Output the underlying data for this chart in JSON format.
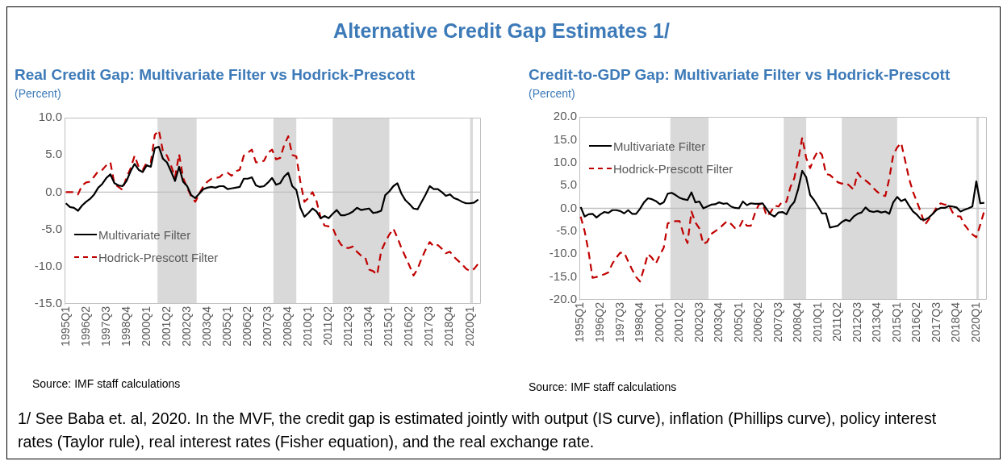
{
  "chart_data": [
    {
      "type": "line",
      "title": "Real Credit Gap: Multivariate Filter vs Hodrick-Prescott",
      "ylabel": "(Percent)",
      "annotations": [
        "Alternative Credit Gap Estimates 1/",
        "Source: IMF staff calculations",
        "1/ See Baba et. al, 2020. In the MVF,  the credit gap is estimated jointly with output (IS curve),  inflation (Phillips curve),  policy interest rates (Taylor rule), real interest rates (Fisher equation), and the real exchange rate."
      ],
      "x": [
        "1995-01",
        "1995-04",
        "1995-07",
        "1995-10",
        "1996-01",
        "1996-04",
        "1996-07",
        "1996-10",
        "1997-01",
        "1997-04",
        "1997-07",
        "1997-10",
        "1998-01",
        "1998-04",
        "1998-07",
        "1998-10",
        "1999-01",
        "1999-04",
        "1999-07",
        "1999-10",
        "2000-01",
        "2000-04",
        "2000-07",
        "2000-10",
        "2001-01",
        "2001-04",
        "2001-07",
        "2001-10",
        "2002-01",
        "2002-04",
        "2002-07",
        "2002-10",
        "2003-01",
        "2003-04",
        "2003-07",
        "2003-10",
        "2004-01",
        "2004-04",
        "2004-07",
        "2004-10",
        "2005-01",
        "2005-04",
        "2005-07",
        "2005-10",
        "2006-01",
        "2006-04",
        "2006-07",
        "2006-10",
        "2007-01",
        "2007-04",
        "2007-07",
        "2007-10",
        "2008-01",
        "2008-04",
        "2008-07",
        "2008-10",
        "2009-01",
        "2009-04",
        "2009-07",
        "2009-10",
        "2010-01",
        "2010-04",
        "2010-07",
        "2010-10",
        "2011-01",
        "2011-04",
        "2011-07",
        "2011-10",
        "2012-01",
        "2012-04",
        "2012-07",
        "2012-10",
        "2013-01",
        "2013-04",
        "2013-07",
        "2013-10",
        "2014-01",
        "2014-04",
        "2014-07",
        "2014-10",
        "2015-01",
        "2015-04",
        "2015-07",
        "2015-10",
        "2016-01",
        "2016-04",
        "2016-07",
        "2016-10",
        "2017-01",
        "2017-04",
        "2017-07",
        "2017-10",
        "2018-01",
        "2018-04",
        "2018-07",
        "2018-10",
        "2019-01",
        "2019-04",
        "2019-07",
        "2019-10",
        "2020-01",
        "2020-04",
        "2020-07"
      ],
      "series": [
        {
          "name": "Multivariate Filter",
          "color": "#000000",
          "line_style": "solid",
          "values": [
            -1.5,
            -2.0,
            -2.1,
            -2.5,
            -1.8,
            -1.3,
            -0.9,
            -0.3,
            0.6,
            1.1,
            1.9,
            2.4,
            1.2,
            0.9,
            0.8,
            1.5,
            2.8,
            3.8,
            3.0,
            2.7,
            3.6,
            3.4,
            5.9,
            6.1,
            4.5,
            4.0,
            2.8,
            1.5,
            3.4,
            1.4,
            0.8,
            -0.4,
            -0.8,
            -0.2,
            0.4,
            0.6,
            0.7,
            0.6,
            0.8,
            0.8,
            0.4,
            0.5,
            0.6,
            0.7,
            1.8,
            1.8,
            2.0,
            0.9,
            0.7,
            0.8,
            1.3,
            1.9,
            1.0,
            1.2,
            2.1,
            2.6,
            0.8,
            0.3,
            -2.1,
            -3.3,
            -2.8,
            -2.2,
            -2.6,
            -3.5,
            -3.2,
            -3.5,
            -2.9,
            -2.4,
            -3.1,
            -3.1,
            -2.9,
            -2.6,
            -2.1,
            -2.4,
            -2.3,
            -2.2,
            -2.8,
            -2.7,
            -2.5,
            -0.4,
            0.1,
            0.8,
            1.2,
            -0.2,
            -1.1,
            -1.6,
            -2.2,
            -2.3,
            -1.3,
            -0.3,
            0.8,
            0.4,
            0.4,
            0.0,
            -0.5,
            -0.3,
            -0.8,
            -1.0,
            -1.3,
            -1.5,
            -1.5,
            -1.4,
            -1.0
          ]
        },
        {
          "name": "Hodrick-Prescott Filter",
          "color": "#c00000",
          "line_style": "dashed",
          "values": [
            0.0,
            0.0,
            0.0,
            -0.3,
            0.9,
            1.3,
            1.4,
            2.1,
            2.8,
            3.0,
            3.6,
            4.0,
            1.1,
            0.7,
            0.3,
            2.0,
            3.2,
            4.9,
            3.4,
            3.0,
            4.0,
            4.0,
            7.7,
            8.3,
            5.5,
            4.9,
            3.6,
            2.0,
            5.1,
            1.9,
            0.6,
            -0.6,
            -1.3,
            -0.2,
            0.8,
            1.4,
            1.8,
            1.9,
            2.0,
            2.5,
            2.6,
            2.2,
            2.8,
            3.0,
            4.9,
            5.3,
            5.7,
            4.0,
            4.0,
            4.2,
            5.3,
            5.7,
            4.4,
            4.6,
            6.3,
            7.5,
            5.0,
            4.8,
            1.4,
            -1.3,
            -0.8,
            0.0,
            -1.2,
            -3.4,
            -4.5,
            -4.6,
            -4.8,
            -6.1,
            -7.0,
            -7.5,
            -7.5,
            -7.3,
            -8.0,
            -8.5,
            -8.7,
            -10.4,
            -10.6,
            -11.1,
            -7.9,
            -6.7,
            -5.7,
            -4.9,
            -6.1,
            -7.5,
            -8.7,
            -9.9,
            -11.2,
            -10.3,
            -8.9,
            -7.7,
            -6.7,
            -7.3,
            -7.1,
            -7.6,
            -8.2,
            -8.0,
            -8.7,
            -9.2,
            -9.7,
            -10.3,
            -10.6,
            -10.3,
            -9.6
          ]
        }
      ],
      "xlim": [
        "1994-12",
        "2020-09"
      ],
      "xticks": [
        {
          "value": "1995-01",
          "label": "1995Q1"
        },
        {
          "value": "1996-04",
          "label": "1996Q2"
        },
        {
          "value": "1997-07",
          "label": "1997Q3"
        },
        {
          "value": "1998-10",
          "label": "1998Q4"
        },
        {
          "value": "2000-01",
          "label": "2000Q1"
        },
        {
          "value": "2001-04",
          "label": "2001Q2"
        },
        {
          "value": "2002-07",
          "label": "2002Q3"
        },
        {
          "value": "2003-10",
          "label": "2003Q4"
        },
        {
          "value": "2005-01",
          "label": "2005Q1"
        },
        {
          "value": "2006-04",
          "label": "2006Q2"
        },
        {
          "value": "2007-07",
          "label": "2007Q3"
        },
        {
          "value": "2008-10",
          "label": "2008Q4"
        },
        {
          "value": "2010-01",
          "label": "2010Q1"
        },
        {
          "value": "2011-04",
          "label": "2011Q2"
        },
        {
          "value": "2012-07",
          "label": "2012Q3"
        },
        {
          "value": "2013-10",
          "label": "2013Q4"
        },
        {
          "value": "2015-01",
          "label": "2015Q1"
        },
        {
          "value": "2016-04",
          "label": "2016Q2"
        },
        {
          "value": "2017-07",
          "label": "2017Q3"
        },
        {
          "value": "2018-10",
          "label": "2018Q4"
        },
        {
          "value": "2020-01",
          "label": "2020Q1"
        }
      ],
      "ylim": [
        -15,
        10
      ],
      "yticks": [
        {
          "value": -15,
          "label": "-15.0"
        },
        {
          "value": -10,
          "label": "-10.0"
        },
        {
          "value": -5,
          "label": "-5.0"
        },
        {
          "value": 0,
          "label": "0.0"
        },
        {
          "value": 5,
          "label": "5.0"
        },
        {
          "value": 10,
          "label": "10.0"
        }
      ],
      "bands": [
        {
          "axis": "x",
          "from": "2000-09",
          "to": "2003-02",
          "color": "#d9d9d9"
        },
        {
          "axis": "x",
          "from": "2007-11",
          "to": "2009-04",
          "color": "#d9d9d9"
        },
        {
          "axis": "x",
          "from": "2011-07",
          "to": "2015-01",
          "color": "#d9d9d9"
        },
        {
          "axis": "x",
          "from": "2020-01",
          "to": "2020-03",
          "color": "#d9d9d9"
        }
      ],
      "ref_lines": [
        {
          "axis": "y",
          "value": 0,
          "color": "#bfbfbf"
        }
      ],
      "grid": false,
      "marker": "none",
      "legend": "bottom left"
    },
    {
      "type": "line",
      "title": "Credit-to-GDP Gap: Multivariate Filter vs Hodrick-Prescott",
      "ylabel": "(Percent)",
      "annotations": [
        "Source: IMF staff calculations"
      ],
      "x": [
        "1995-01",
        "1995-04",
        "1995-07",
        "1995-10",
        "1996-01",
        "1996-04",
        "1996-07",
        "1996-10",
        "1997-01",
        "1997-04",
        "1997-07",
        "1997-10",
        "1998-01",
        "1998-04",
        "1998-07",
        "1998-10",
        "1999-01",
        "1999-04",
        "1999-07",
        "1999-10",
        "2000-01",
        "2000-04",
        "2000-07",
        "2000-10",
        "2001-01",
        "2001-04",
        "2001-07",
        "2001-10",
        "2002-01",
        "2002-04",
        "2002-07",
        "2002-10",
        "2003-01",
        "2003-04",
        "2003-07",
        "2003-10",
        "2004-01",
        "2004-04",
        "2004-07",
        "2004-10",
        "2005-01",
        "2005-04",
        "2005-07",
        "2005-10",
        "2006-01",
        "2006-04",
        "2006-07",
        "2006-10",
        "2007-01",
        "2007-04",
        "2007-07",
        "2007-10",
        "2008-01",
        "2008-04",
        "2008-07",
        "2008-10",
        "2009-01",
        "2009-04",
        "2009-07",
        "2009-10",
        "2010-01",
        "2010-04",
        "2010-07",
        "2010-10",
        "2011-01",
        "2011-04",
        "2011-07",
        "2011-10",
        "2012-01",
        "2012-04",
        "2012-07",
        "2012-10",
        "2013-01",
        "2013-04",
        "2013-07",
        "2013-10",
        "2014-01",
        "2014-04",
        "2014-07",
        "2014-10",
        "2015-01",
        "2015-04",
        "2015-07",
        "2015-10",
        "2016-01",
        "2016-04",
        "2016-07",
        "2016-10",
        "2017-01",
        "2017-04",
        "2017-07",
        "2017-10",
        "2018-01",
        "2018-04",
        "2018-07",
        "2018-10",
        "2019-01",
        "2019-04",
        "2019-07",
        "2019-10",
        "2020-01",
        "2020-04",
        "2020-07"
      ],
      "series": [
        {
          "name": "Multivariate Filter",
          "color": "#000000",
          "line_style": "solid",
          "values": [
            0.3,
            -1.8,
            -1.3,
            -1.2,
            -2.0,
            -1.3,
            -0.8,
            -1.0,
            -0.4,
            -0.4,
            -0.6,
            -1.1,
            -0.4,
            -1.2,
            -1.2,
            -0.1,
            1.3,
            2.2,
            2.0,
            1.6,
            0.9,
            1.3,
            3.2,
            3.4,
            2.9,
            2.3,
            2.0,
            1.8,
            3.5,
            1.3,
            1.5,
            0.0,
            0.4,
            0.8,
            0.9,
            1.3,
            1.0,
            1.1,
            0.4,
            0.1,
            0.0,
            1.5,
            0.7,
            1.1,
            1.0,
            1.0,
            1.1,
            -0.2,
            -1.3,
            -1.8,
            -0.9,
            -0.8,
            -1.3,
            0.4,
            1.4,
            4.3,
            8.2,
            6.8,
            2.9,
            1.8,
            0.4,
            -1.1,
            -1.1,
            -4.2,
            -4.0,
            -3.8,
            -3.0,
            -2.5,
            -2.8,
            -1.8,
            -1.2,
            -0.9,
            0.2,
            -0.6,
            -0.8,
            -0.6,
            -0.9,
            -0.7,
            -1.2,
            1.3,
            2.5,
            1.6,
            2.0,
            0.6,
            -0.7,
            -1.4,
            -2.4,
            -2.5,
            -2.0,
            -1.2,
            -0.3,
            0.1,
            0.1,
            0.5,
            0.4,
            0.2,
            -0.7,
            -0.3,
            0.0,
            0.4,
            5.9,
            1.1,
            1.2
          ]
        },
        {
          "name": "Hodrick-Prescott Filter",
          "color": "#c00000",
          "line_style": "dashed",
          "values": [
            -1.8,
            -5.0,
            -9.5,
            -15.2,
            -15.0,
            -14.7,
            -14.4,
            -14.0,
            -12.1,
            -10.8,
            -9.7,
            -9.7,
            -11.6,
            -13.4,
            -15.0,
            -16.0,
            -13.1,
            -10.0,
            -10.8,
            -12.1,
            -10.2,
            -8.6,
            -3.3,
            -2.9,
            -2.8,
            -2.8,
            -5.7,
            -7.6,
            -0.7,
            -3.1,
            -4.4,
            -7.8,
            -7.3,
            -5.6,
            -5.0,
            -4.4,
            -3.6,
            -2.8,
            -3.4,
            -4.3,
            -4.3,
            -2.6,
            -3.8,
            -3.8,
            -1.2,
            0.8,
            1.1,
            -1.7,
            -0.9,
            0.6,
            0.4,
            1.5,
            1.4,
            4.6,
            6.6,
            10.7,
            15.5,
            11.0,
            8.8,
            11.0,
            12.6,
            11.7,
            7.5,
            7.3,
            6.5,
            5.7,
            5.4,
            5.6,
            4.9,
            4.1,
            7.8,
            6.6,
            6.1,
            5.4,
            4.4,
            3.6,
            2.9,
            2.7,
            6.5,
            11.7,
            13.3,
            14.3,
            10.5,
            6.5,
            3.6,
            1.4,
            -0.9,
            -3.6,
            -2.4,
            -1.2,
            0.2,
            1.1,
            0.8,
            0.8,
            -0.9,
            -1.7,
            -1.8,
            -3.6,
            -4.7,
            -5.7,
            -6.3,
            -3.6,
            -0.6
          ]
        }
      ],
      "xlim": [
        "1994-12",
        "2020-09"
      ],
      "xticks": [
        {
          "value": "1995-01",
          "label": "1995Q1"
        },
        {
          "value": "1996-04",
          "label": "1996Q2"
        },
        {
          "value": "1997-07",
          "label": "1997Q3"
        },
        {
          "value": "1998-10",
          "label": "1998Q4"
        },
        {
          "value": "2000-01",
          "label": "2000Q1"
        },
        {
          "value": "2001-04",
          "label": "2001Q2"
        },
        {
          "value": "2002-07",
          "label": "2002Q3"
        },
        {
          "value": "2003-10",
          "label": "2003Q4"
        },
        {
          "value": "2005-01",
          "label": "2005Q1"
        },
        {
          "value": "2006-04",
          "label": "2006Q2"
        },
        {
          "value": "2007-07",
          "label": "2007Q3"
        },
        {
          "value": "2008-10",
          "label": "2008Q4"
        },
        {
          "value": "2010-01",
          "label": "2010Q1"
        },
        {
          "value": "2011-04",
          "label": "2011Q2"
        },
        {
          "value": "2012-07",
          "label": "2012Q3"
        },
        {
          "value": "2013-10",
          "label": "2013Q4"
        },
        {
          "value": "2015-01",
          "label": "2015Q1"
        },
        {
          "value": "2016-04",
          "label": "2016Q2"
        },
        {
          "value": "2017-07",
          "label": "2017Q3"
        },
        {
          "value": "2018-10",
          "label": "2018Q4"
        },
        {
          "value": "2020-01",
          "label": "2020Q1"
        }
      ],
      "ylim": [
        -20,
        20
      ],
      "yticks": [
        {
          "value": -20,
          "label": "-20.0"
        },
        {
          "value": -15,
          "label": "-15.0"
        },
        {
          "value": -10,
          "label": "-10.0"
        },
        {
          "value": -5,
          "label": "-5.0"
        },
        {
          "value": 0,
          "label": "0.0"
        },
        {
          "value": 5,
          "label": "5.0"
        },
        {
          "value": 10,
          "label": "10.0"
        },
        {
          "value": 15,
          "label": "15.0"
        },
        {
          "value": 20,
          "label": "20.0"
        }
      ],
      "bands": [
        {
          "axis": "x",
          "from": "2000-09",
          "to": "2003-02",
          "color": "#d9d9d9"
        },
        {
          "axis": "x",
          "from": "2007-11",
          "to": "2009-04",
          "color": "#d9d9d9"
        },
        {
          "axis": "x",
          "from": "2011-07",
          "to": "2015-01",
          "color": "#d9d9d9"
        },
        {
          "axis": "x",
          "from": "2020-01",
          "to": "2020-03",
          "color": "#d9d9d9"
        }
      ],
      "ref_lines": [
        {
          "axis": "y",
          "value": 0,
          "color": "#bfbfbf"
        }
      ],
      "grid": false,
      "marker": "none",
      "legend": "top left"
    }
  ]
}
